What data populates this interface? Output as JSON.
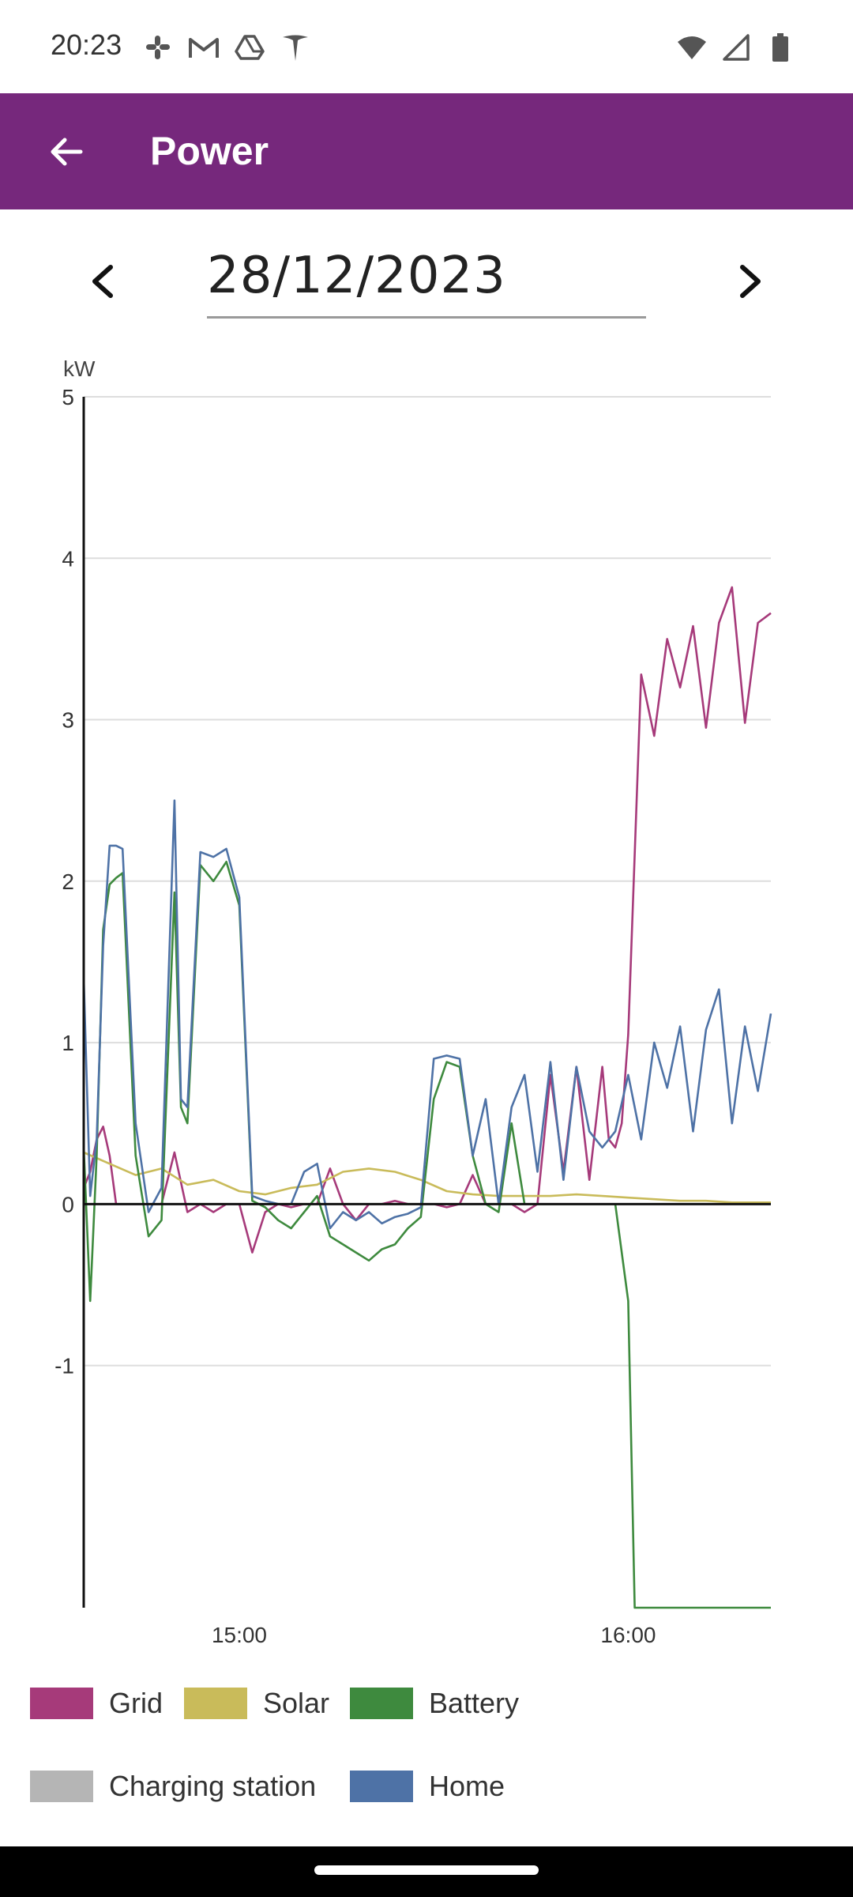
{
  "status_bar": {
    "time": "20:23",
    "left_icons": [
      "slack-icon",
      "gmail-icon",
      "drive-icon",
      "tesla-icon"
    ],
    "right_icons": [
      "wifi-icon",
      "signal-icon",
      "battery-icon"
    ]
  },
  "app_bar": {
    "title": "Power",
    "back_icon": "arrow-left-icon",
    "background": "#76287c"
  },
  "date_nav": {
    "date": "28/12/2023",
    "prev_icon": "chevron-left-icon",
    "next_icon": "chevron-right-icon"
  },
  "chart_data": {
    "type": "line",
    "ylabel": "kW",
    "ylim": [
      -2.5,
      5
    ],
    "yticks": [
      5,
      4,
      3,
      2,
      1,
      0,
      -1
    ],
    "xlim": [
      "14:36",
      "16:22"
    ],
    "xticks": [
      {
        "value": "15:00",
        "label": "15:00"
      },
      {
        "value": "16:00",
        "label": "16:00"
      }
    ],
    "grid": true,
    "legend_position": "bottom",
    "series": [
      {
        "name": "Grid",
        "color": "#a63a7a",
        "x": [
          "14:36",
          "14:37",
          "14:38",
          "14:39",
          "14:40",
          "14:41",
          "14:42",
          "14:44",
          "14:46",
          "14:48",
          "14:50",
          "14:52",
          "14:54",
          "14:56",
          "14:58",
          "15:00",
          "15:02",
          "15:04",
          "15:06",
          "15:08",
          "15:10",
          "15:12",
          "15:14",
          "15:16",
          "15:18",
          "15:20",
          "15:22",
          "15:24",
          "15:26",
          "15:28",
          "15:30",
          "15:32",
          "15:34",
          "15:36",
          "15:38",
          "15:40",
          "15:42",
          "15:44",
          "15:46",
          "15:48",
          "15:50",
          "15:52",
          "15:54",
          "15:56",
          "15:57",
          "15:58",
          "15:59",
          "16:00",
          "16:02",
          "16:04",
          "16:06",
          "16:08",
          "16:10",
          "16:12",
          "16:14",
          "16:16",
          "16:18",
          "16:20",
          "16:22"
        ],
        "y": [
          0.1,
          0.2,
          0.4,
          0.48,
          0.3,
          0.0,
          0.0,
          0.0,
          0.0,
          0.0,
          0.32,
          -0.05,
          0.0,
          -0.05,
          0.0,
          0.0,
          -0.3,
          -0.05,
          0.0,
          -0.02,
          0.0,
          0.0,
          0.22,
          0.0,
          -0.1,
          0.0,
          0.0,
          0.02,
          0.0,
          0.0,
          0.0,
          -0.02,
          0.0,
          0.18,
          0.0,
          0.0,
          0.0,
          -0.05,
          0.0,
          0.8,
          0.2,
          0.85,
          0.15,
          0.85,
          0.4,
          0.35,
          0.5,
          1.05,
          3.28,
          2.9,
          3.5,
          3.2,
          3.58,
          2.95,
          3.6,
          3.82,
          2.98,
          3.6,
          3.66
        ]
      },
      {
        "name": "Solar",
        "color": "#c9bb5a",
        "x": [
          "14:36",
          "14:40",
          "14:44",
          "14:48",
          "14:52",
          "14:56",
          "15:00",
          "15:04",
          "15:08",
          "15:12",
          "15:16",
          "15:20",
          "15:24",
          "15:28",
          "15:32",
          "15:36",
          "15:40",
          "15:44",
          "15:48",
          "15:52",
          "15:56",
          "16:00",
          "16:04",
          "16:08",
          "16:12",
          "16:16",
          "16:22"
        ],
        "y": [
          0.32,
          0.25,
          0.18,
          0.22,
          0.12,
          0.15,
          0.08,
          0.06,
          0.1,
          0.12,
          0.2,
          0.22,
          0.2,
          0.15,
          0.08,
          0.06,
          0.05,
          0.05,
          0.05,
          0.06,
          0.05,
          0.04,
          0.03,
          0.02,
          0.02,
          0.01,
          0.01
        ]
      },
      {
        "name": "Battery",
        "color": "#3e8a3e",
        "x": [
          "14:36",
          "14:37",
          "14:38",
          "14:39",
          "14:40",
          "14:41",
          "14:42",
          "14:44",
          "14:46",
          "14:48",
          "14:50",
          "14:51",
          "14:52",
          "14:54",
          "14:56",
          "14:58",
          "15:00",
          "15:02",
          "15:04",
          "15:06",
          "15:08",
          "15:10",
          "15:12",
          "15:14",
          "15:16",
          "15:18",
          "15:20",
          "15:22",
          "15:24",
          "15:26",
          "15:28",
          "15:30",
          "15:32",
          "15:34",
          "15:36",
          "15:38",
          "15:40",
          "15:42",
          "15:44",
          "15:46",
          "15:48",
          "15:50",
          "15:52",
          "15:54",
          "15:56",
          "15:58",
          "16:00",
          "16:01",
          "16:02",
          "16:04",
          "16:08",
          "16:12",
          "16:16",
          "16:22"
        ],
        "y": [
          0.35,
          -0.6,
          0.3,
          1.7,
          1.98,
          2.02,
          2.05,
          0.3,
          -0.2,
          -0.1,
          1.93,
          0.6,
          0.5,
          2.1,
          2.0,
          2.12,
          1.85,
          0.02,
          -0.02,
          -0.1,
          -0.15,
          -0.05,
          0.05,
          -0.2,
          -0.25,
          -0.3,
          -0.35,
          -0.28,
          -0.25,
          -0.15,
          -0.08,
          0.65,
          0.88,
          0.85,
          0.3,
          0.0,
          -0.05,
          0.5,
          0.0,
          0.0,
          0.0,
          0.0,
          0.0,
          0.0,
          0.0,
          0.0,
          -0.6,
          -2.5,
          -2.5,
          -2.5,
          -2.5,
          -2.5,
          -2.5,
          -2.5
        ]
      },
      {
        "name": "Charging station",
        "color": "#b5b5b5",
        "x": [],
        "y": []
      },
      {
        "name": "Home",
        "color": "#4e72a6",
        "x": [
          "14:36",
          "14:37",
          "14:38",
          "14:39",
          "14:40",
          "14:41",
          "14:42",
          "14:44",
          "14:46",
          "14:48",
          "14:50",
          "14:51",
          "14:52",
          "14:54",
          "14:56",
          "14:58",
          "15:00",
          "15:02",
          "15:04",
          "15:06",
          "15:08",
          "15:10",
          "15:12",
          "15:14",
          "15:16",
          "15:18",
          "15:20",
          "15:22",
          "15:24",
          "15:26",
          "15:28",
          "15:30",
          "15:32",
          "15:34",
          "15:36",
          "15:38",
          "15:40",
          "15:42",
          "15:44",
          "15:46",
          "15:48",
          "15:50",
          "15:52",
          "15:54",
          "15:56",
          "15:58",
          "16:00",
          "16:02",
          "16:04",
          "16:06",
          "16:08",
          "16:10",
          "16:12",
          "16:14",
          "16:16",
          "16:18",
          "16:20",
          "16:22"
        ],
        "y": [
          1.4,
          0.05,
          0.4,
          1.6,
          2.22,
          2.22,
          2.2,
          0.5,
          -0.05,
          0.1,
          2.5,
          0.65,
          0.6,
          2.18,
          2.15,
          2.2,
          1.9,
          0.05,
          0.02,
          0.0,
          0.0,
          0.2,
          0.25,
          -0.15,
          -0.05,
          -0.1,
          -0.05,
          -0.12,
          -0.08,
          -0.06,
          -0.02,
          0.9,
          0.92,
          0.9,
          0.3,
          0.65,
          0.0,
          0.6,
          0.8,
          0.2,
          0.88,
          0.15,
          0.85,
          0.45,
          0.35,
          0.45,
          0.8,
          0.4,
          1.0,
          0.72,
          1.1,
          0.45,
          1.08,
          1.33,
          0.5,
          1.1,
          0.7,
          1.18
        ]
      }
    ]
  }
}
